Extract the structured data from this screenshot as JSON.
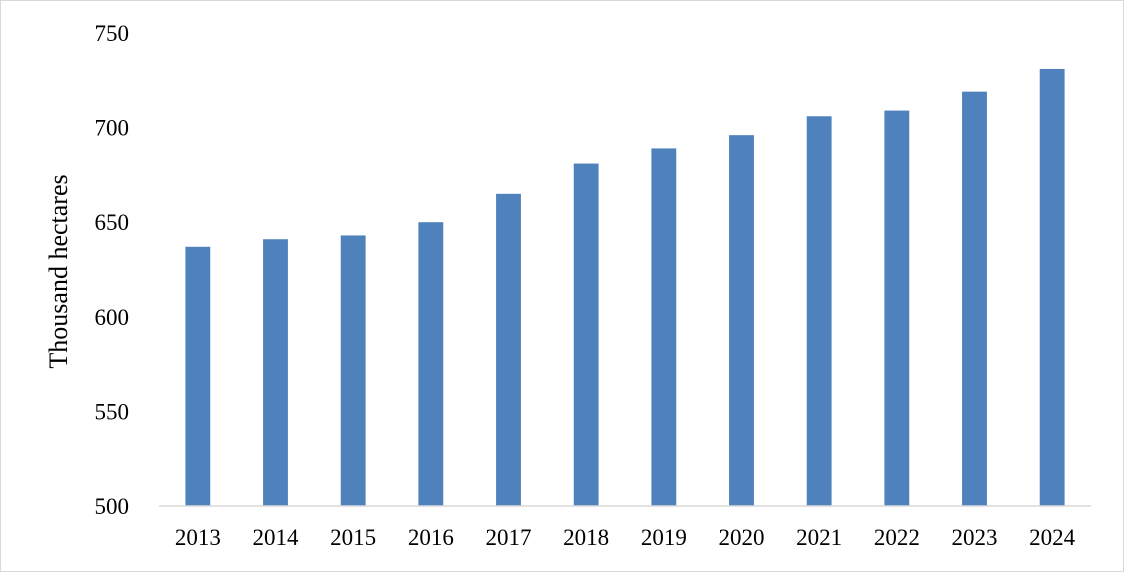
{
  "chart_data": {
    "type": "bar",
    "title": "",
    "xlabel": "",
    "ylabel": "Thousand hectares",
    "categories": [
      "2013",
      "2014",
      "2015",
      "2016",
      "2017",
      "2018",
      "2019",
      "2020",
      "2021",
      "2022",
      "2023",
      "2024"
    ],
    "values": [
      637,
      641,
      643,
      650,
      665,
      681,
      689,
      696,
      706,
      709,
      719,
      731
    ],
    "ylim": [
      500,
      750
    ],
    "yticks": [
      "500",
      "550",
      "600",
      "650",
      "700",
      "750"
    ],
    "grid": false,
    "legend": "none",
    "bar_color": "#4f81bd"
  }
}
